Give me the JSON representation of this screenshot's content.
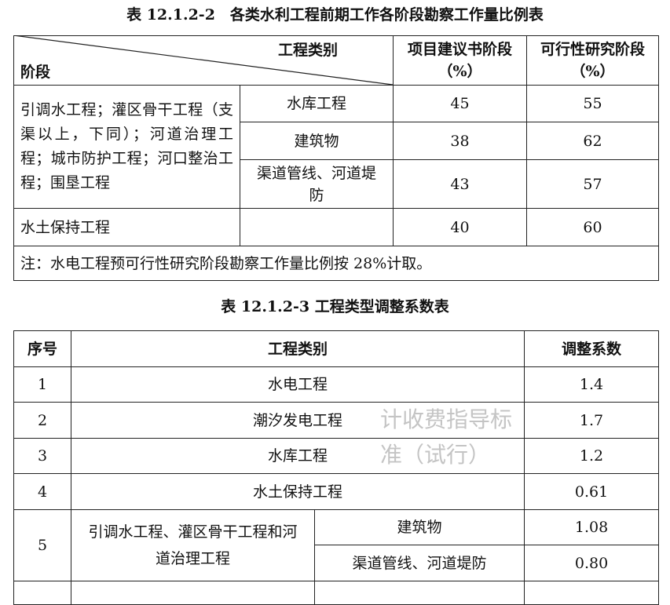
{
  "table1": {
    "title": "表 12.1.2-2　各类水利工程前期工作各阶段勘察工作量比例表",
    "header": {
      "category": "工程类别",
      "stage": "阶段",
      "col1": "项目建议书阶段（%）",
      "col2": "可行性研究阶段（%）"
    },
    "group1_label": "引调水工程；灌区骨干工程（支渠以上，下同）；河道治理工程；城市防护工程；河口整治工程；围垦工程",
    "rows": [
      {
        "type": "水库工程",
        "v1": "45",
        "v2": "55"
      },
      {
        "type": "建筑物",
        "v1": "38",
        "v2": "62"
      },
      {
        "type": "渠道管线、河道堤防",
        "v1": "43",
        "v2": "57"
      }
    ],
    "row_soil": {
      "label": "水土保持工程",
      "type": "",
      "v1": "40",
      "v2": "60"
    },
    "note": "注：水电工程预可行性研究阶段勘察工作量比例按 28%计取。"
  },
  "table2": {
    "title": "表 12.1.2-3  工程类型调整系数表",
    "header": {
      "no": "序号",
      "category": "工程类别",
      "coef": "调整系数"
    },
    "rows": [
      {
        "no": "1",
        "category": "水电工程",
        "coef": "1.4"
      },
      {
        "no": "2",
        "category": "潮汐发电工程",
        "coef": "1.7"
      },
      {
        "no": "3",
        "category": "水库工程",
        "coef": "1.2"
      },
      {
        "no": "4",
        "category": "水土保持工程",
        "coef": "0.61"
      }
    ],
    "row5": {
      "no": "5",
      "group": "引调水工程、灌区骨干工程和河道治理工程",
      "subs": [
        {
          "category": "建筑物",
          "coef": "1.08"
        },
        {
          "category": "渠道管线、河道堤防",
          "coef": "0.80"
        }
      ]
    }
  },
  "watermark": "计收费指导标准（试行）"
}
